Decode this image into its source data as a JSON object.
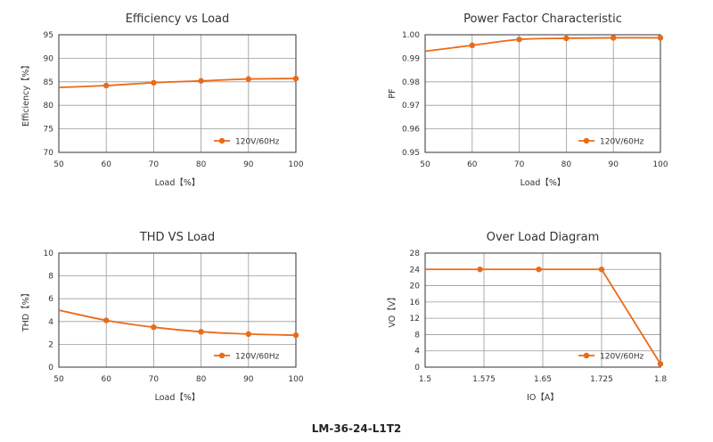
{
  "footer_model": "LM-36-24-L1T2",
  "colors": {
    "series": "#ea6a18",
    "grid": "#9a9a9a",
    "axis": "#333333"
  },
  "chart_data": [
    {
      "type": "line",
      "title": "Efficiency vs Load",
      "xlabel": "Load【%】",
      "ylabel": "Efficiency【%】",
      "xlim": [
        50,
        100
      ],
      "ylim": [
        70,
        95
      ],
      "xticks": [
        50,
        60,
        70,
        80,
        90,
        100
      ],
      "yticks": [
        70,
        75,
        80,
        85,
        90,
        95
      ],
      "xtick_labels": [
        "50",
        "60",
        "70",
        "80",
        "90",
        "100"
      ],
      "ytick_labels": [
        "70",
        "75",
        "80",
        "85",
        "90",
        "95"
      ],
      "series": [
        {
          "name": "120V/60Hz",
          "x": [
            50,
            60,
            70,
            80,
            90,
            100
          ],
          "y": [
            83.8,
            84.2,
            84.8,
            85.2,
            85.6,
            85.7
          ],
          "markers": [
            false,
            true,
            true,
            true,
            true,
            true
          ]
        }
      ],
      "grid": true,
      "legend": "bottom-right"
    },
    {
      "type": "line",
      "title": "Power Factor Characteristic",
      "xlabel": "Load【%】",
      "ylabel": "PF",
      "xlim": [
        50,
        100
      ],
      "ylim": [
        0.95,
        1.0
      ],
      "xticks": [
        50,
        60,
        70,
        80,
        90,
        100
      ],
      "yticks": [
        0.95,
        0.96,
        0.97,
        0.98,
        0.99,
        1.0
      ],
      "xtick_labels": [
        "50",
        "60",
        "70",
        "80",
        "90",
        "100"
      ],
      "ytick_labels": [
        "0.95",
        "0.96",
        "0.97",
        "0.98",
        "0.99",
        "1.00"
      ],
      "series": [
        {
          "name": "120V/60Hz",
          "x": [
            50,
            60,
            70,
            80,
            90,
            100
          ],
          "y": [
            0.993,
            0.9955,
            0.998,
            0.9985,
            0.9987,
            0.9987
          ],
          "markers": [
            false,
            true,
            true,
            true,
            true,
            true
          ]
        }
      ],
      "grid": true,
      "legend": "bottom-right"
    },
    {
      "type": "line",
      "title": "THD VS Load",
      "xlabel": "Load【%】",
      "ylabel": "THD【%】",
      "xlim": [
        50,
        100
      ],
      "ylim": [
        0,
        10
      ],
      "xticks": [
        50,
        60,
        70,
        80,
        90,
        100
      ],
      "yticks": [
        0,
        2,
        4,
        6,
        8,
        10
      ],
      "xtick_labels": [
        "50",
        "60",
        "70",
        "80",
        "90",
        "100"
      ],
      "ytick_labels": [
        "0",
        "2",
        "4",
        "6",
        "8",
        "10"
      ],
      "series": [
        {
          "name": "120V/60Hz",
          "x": [
            50,
            60,
            70,
            80,
            90,
            100
          ],
          "y": [
            5.0,
            4.1,
            3.5,
            3.1,
            2.9,
            2.8
          ],
          "markers": [
            false,
            true,
            true,
            true,
            true,
            true
          ]
        }
      ],
      "grid": true,
      "legend": "bottom-right"
    },
    {
      "type": "line",
      "title": "Over Load Diagram",
      "xlabel": "IO【A】",
      "ylabel": "VO【V】",
      "xlim": [
        1.5,
        1.8
      ],
      "ylim": [
        0,
        28
      ],
      "xticks": [
        1.5,
        1.575,
        1.65,
        1.725,
        1.8
      ],
      "yticks": [
        0,
        4,
        8,
        12,
        16,
        20,
        24,
        28
      ],
      "xtick_labels": [
        "1.5",
        "1.575",
        "1.65",
        "1.725",
        "1.8"
      ],
      "ytick_labels": [
        "0",
        "4",
        "8",
        "12",
        "16",
        "20",
        "24",
        "28"
      ],
      "series": [
        {
          "name": "120V/60Hz",
          "x": [
            1.5,
            1.57,
            1.645,
            1.725,
            1.8
          ],
          "y": [
            24,
            24,
            24,
            24,
            0.8
          ],
          "markers": [
            false,
            true,
            true,
            true,
            true
          ]
        }
      ],
      "grid": true,
      "legend": "bottom-right"
    }
  ]
}
